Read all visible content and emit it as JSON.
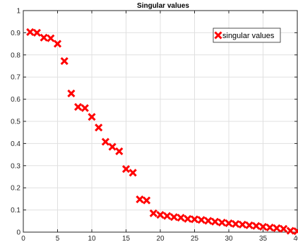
{
  "chart_data": {
    "type": "scatter",
    "title": "Singular values",
    "xlabel": "",
    "ylabel": "",
    "xlim": [
      0,
      40
    ],
    "ylim": [
      0,
      1
    ],
    "xticks": [
      0,
      5,
      10,
      15,
      20,
      25,
      30,
      35,
      40
    ],
    "yticks": [
      0,
      0.1,
      0.2,
      0.3,
      0.4,
      0.5,
      0.6,
      0.7,
      0.8,
      0.9,
      1
    ],
    "xtick_labels": [
      "0",
      "5",
      "10",
      "15",
      "20",
      "25",
      "30",
      "35",
      "40"
    ],
    "ytick_labels": [
      "0",
      "0.1",
      "0.2",
      "0.3",
      "0.4",
      "0.5",
      "0.6",
      "0.7",
      "0.8",
      "0.9",
      "1"
    ],
    "grid": true,
    "legend_position": "top-right",
    "series": [
      {
        "name": "singular values",
        "marker": "x",
        "color": "#ff0000",
        "x": [
          1,
          2,
          3,
          4,
          5,
          6,
          7,
          8,
          9,
          10,
          11,
          12,
          13,
          14,
          15,
          16,
          17,
          18,
          19,
          20,
          21,
          22,
          23,
          24,
          25,
          26,
          27,
          28,
          29,
          30,
          31,
          32,
          33,
          34,
          35,
          36,
          37,
          38,
          39,
          40
        ],
        "y": [
          0.903,
          0.9,
          0.878,
          0.875,
          0.85,
          0.772,
          0.626,
          0.565,
          0.56,
          0.52,
          0.472,
          0.408,
          0.385,
          0.365,
          0.285,
          0.268,
          0.148,
          0.143,
          0.085,
          0.078,
          0.073,
          0.068,
          0.065,
          0.06,
          0.058,
          0.055,
          0.051,
          0.047,
          0.043,
          0.04,
          0.037,
          0.034,
          0.031,
          0.028,
          0.024,
          0.021,
          0.018,
          0.015,
          0.006,
          0.004
        ]
      }
    ]
  }
}
